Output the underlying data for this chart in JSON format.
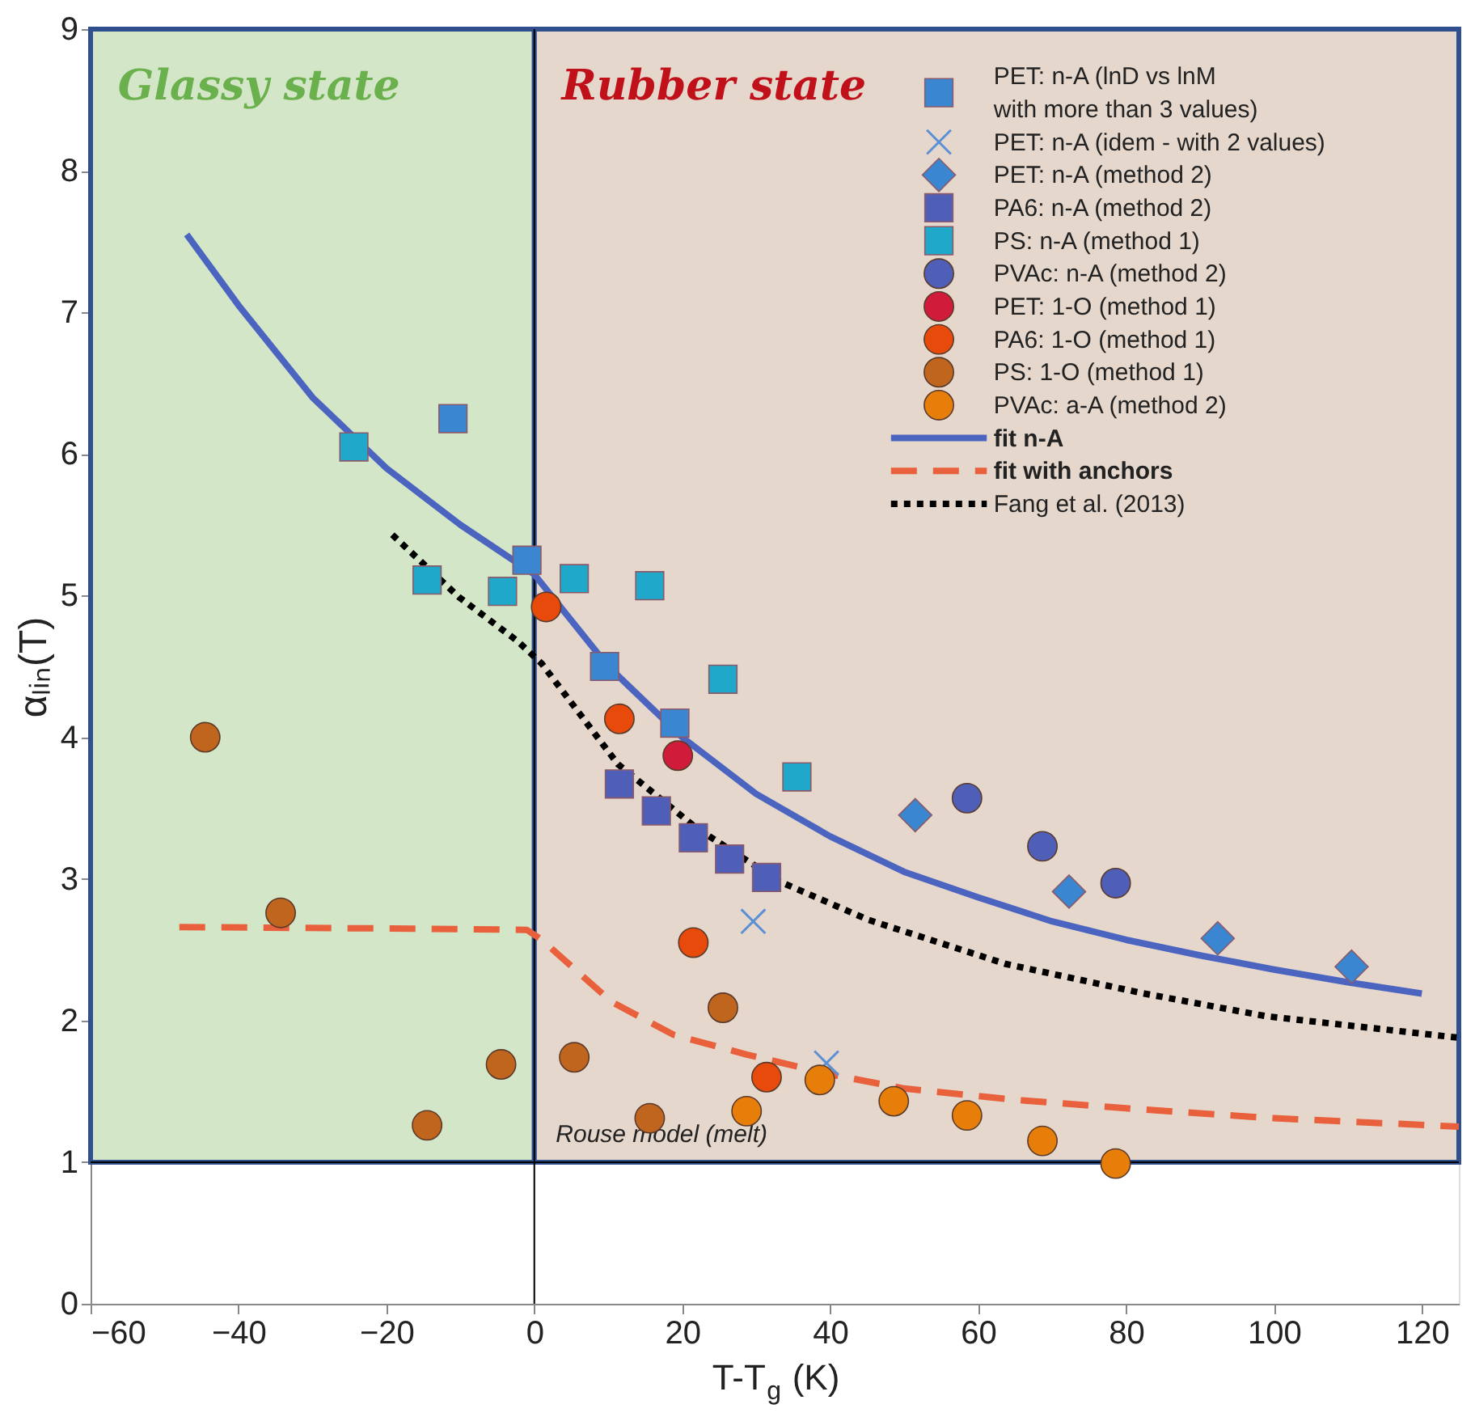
{
  "chart_data": {
    "type": "scatter",
    "xlabel": "T-T$_{g}$ (K)",
    "ylabel": "αₗᵢₙ(T)",
    "xlim": [
      -60,
      125
    ],
    "ylim": [
      0,
      9
    ],
    "xticks": [
      -60,
      -40,
      -20,
      0,
      20,
      40,
      60,
      80,
      100,
      120
    ],
    "yticks": [
      0,
      1,
      2,
      3,
      4,
      5,
      6,
      7,
      8,
      9
    ],
    "grid": false,
    "legend": "top right",
    "bands": [
      {
        "axis": "x",
        "from": -60,
        "to": 0,
        "label": "Glassy state",
        "color": "#d4e6c8"
      },
      {
        "axis": "x",
        "from": 0,
        "to": 125,
        "label": "Rubber state",
        "color": "#e5d7cc"
      }
    ],
    "ref_lines": [
      {
        "axis": "y",
        "value": 1,
        "label": "Rouse model (melt)",
        "color": "#000000"
      },
      {
        "axis": "x",
        "value": 0,
        "color": "#000000"
      }
    ],
    "series": [
      {
        "name": "PET: n-A (lnD vs lnM\nwith more than 3 values)",
        "marker": "square",
        "color": "#3a86d0",
        "x": [
          -11,
          -1,
          9.5,
          19
        ],
        "values": [
          6.25,
          5.25,
          4.5,
          4.1
        ]
      },
      {
        "name": "PET: n-A (idem - with 2 values)",
        "marker": "cross",
        "color": "#5b8fd6",
        "x": [
          29.6,
          39.5
        ],
        "values": [
          2.7,
          1.7
        ]
      },
      {
        "name": "PET: n-A (method 2)",
        "marker": "diamond",
        "color": "#3a86d0",
        "x": [
          51.5,
          72.3,
          92.4,
          110.5
        ],
        "values": [
          3.45,
          2.91,
          2.58,
          2.38
        ]
      },
      {
        "name": "PA6: n-A (method 2)",
        "marker": "square",
        "color": "#4f5fb8",
        "x": [
          11.5,
          16.5,
          21.5,
          26.4,
          31.4
        ],
        "values": [
          3.67,
          3.48,
          3.29,
          3.14,
          3.01
        ]
      },
      {
        "name": "PS: n-A (method 1)",
        "marker": "square",
        "color": "#1fa8c9",
        "x": [
          -24.4,
          -14.5,
          -4.3,
          5.4,
          15.6,
          25.5,
          35.5
        ],
        "values": [
          6.05,
          5.11,
          5.03,
          5.12,
          5.07,
          4.41,
          3.72
        ]
      },
      {
        "name": "PVAc: n-A (method 2)",
        "marker": "circle",
        "color": "#4f5fb8",
        "x": [
          58.5,
          68.7,
          78.6
        ],
        "values": [
          3.57,
          3.23,
          2.97
        ]
      },
      {
        "name": "PET: 1-O (method 1)",
        "marker": "circle",
        "color": "#d01c3a",
        "x": [
          19.4
        ],
        "values": [
          3.87
        ]
      },
      {
        "name": "PA6: 1-O (method 1)",
        "marker": "circle",
        "color": "#e84a0c",
        "x": [
          1.6,
          11.5,
          21.5,
          31.4
        ],
        "values": [
          4.92,
          4.13,
          2.55,
          1.6
        ]
      },
      {
        "name": "PS: 1-O (method 1)",
        "marker": "circle",
        "color": "#c0651e",
        "x": [
          -44.5,
          -34.3,
          -14.5,
          -4.5,
          5.4,
          15.6,
          25.5
        ],
        "values": [
          4.0,
          2.76,
          1.26,
          1.69,
          1.74,
          1.31,
          2.09
        ]
      },
      {
        "name": "PVAc: a-A (method 2)",
        "marker": "circle",
        "color": "#e87e0a",
        "x": [
          28.7,
          38.6,
          48.6,
          58.5,
          68.7,
          78.6
        ],
        "values": [
          1.36,
          1.58,
          1.43,
          1.33,
          1.15,
          0.99
        ]
      },
      {
        "name": "fit n-A",
        "type": "line",
        "line_style": "solid",
        "color": "#4a64c0",
        "x": [
          -47,
          -40,
          -30,
          -20,
          -10,
          0,
          10,
          20,
          30,
          40,
          50,
          60,
          70,
          80,
          90,
          100,
          110,
          120
        ],
        "values": [
          7.55,
          7.05,
          6.4,
          5.9,
          5.5,
          5.15,
          4.5,
          4.0,
          3.6,
          3.3,
          3.05,
          2.87,
          2.7,
          2.57,
          2.46,
          2.36,
          2.27,
          2.19
        ]
      },
      {
        "name": "fit with anchors",
        "type": "line",
        "line_style": "dashed",
        "color": "#e8603c",
        "x": [
          -48,
          -20,
          -1,
          1,
          10.5,
          18.8,
          28.7,
          40,
          50,
          65,
          80,
          100,
          117,
          125
        ],
        "values": [
          2.66,
          2.65,
          2.64,
          2.57,
          2.13,
          1.9,
          1.76,
          1.62,
          1.52,
          1.44,
          1.38,
          1.31,
          1.27,
          1.25
        ]
      },
      {
        "name": "Fang et al. (2013)",
        "type": "line",
        "line_style": "dotted",
        "color": "#000000",
        "x": [
          -19.2,
          -10.2,
          -2.3,
          1,
          11.3,
          21.9,
          33.2,
          45.2,
          63.7,
          82.5,
          99,
          124.7
        ],
        "values": [
          5.43,
          4.99,
          4.68,
          4.52,
          3.81,
          3.36,
          2.98,
          2.71,
          2.4,
          2.19,
          2.03,
          1.88
        ]
      }
    ]
  }
}
